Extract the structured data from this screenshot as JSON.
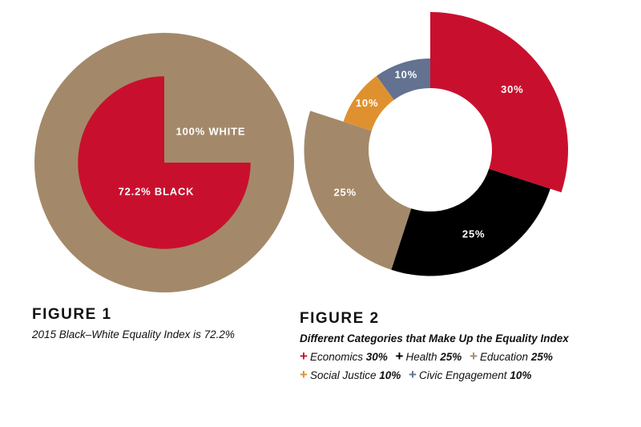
{
  "chart_data": [
    {
      "type": "pie",
      "title": "FIGURE 1",
      "caption": "2015 Black–White Equality Index is 72.2%",
      "series": [
        {
          "name": "White",
          "label": "100% WHITE",
          "value": 100,
          "color": "#a3896a"
        },
        {
          "name": "Black",
          "label": "72.2% BLACK",
          "value": 72.2,
          "color": "#c8102e"
        }
      ]
    },
    {
      "type": "pie",
      "title": "FIGURE 2",
      "caption": "Different Categories that Make Up the Equality Index",
      "slices": [
        {
          "name": "Economics",
          "label": "30%",
          "value": 30,
          "color": "#c8102e"
        },
        {
          "name": "Health",
          "label": "25%",
          "value": 25,
          "color": "#000000"
        },
        {
          "name": "Education",
          "label": "25%",
          "value": 25,
          "color": "#a3896a"
        },
        {
          "name": "Social Justice",
          "label": "10%",
          "value": 10,
          "color": "#e0912f"
        },
        {
          "name": "Civic Engagement",
          "label": "10%",
          "value": 10,
          "color": "#627290"
        }
      ],
      "legend": [
        {
          "name": "Economics",
          "value": "30%",
          "color": "#c8102e"
        },
        {
          "name": "Health",
          "value": "25%",
          "color": "#000000"
        },
        {
          "name": "Education",
          "value": "25%",
          "color": "#a3896a"
        },
        {
          "name": "Social Justice",
          "value": "10%",
          "color": "#e0912f"
        },
        {
          "name": "Civic Engagement",
          "value": "10%",
          "color": "#627290"
        }
      ]
    }
  ],
  "legend_symbol": "+"
}
